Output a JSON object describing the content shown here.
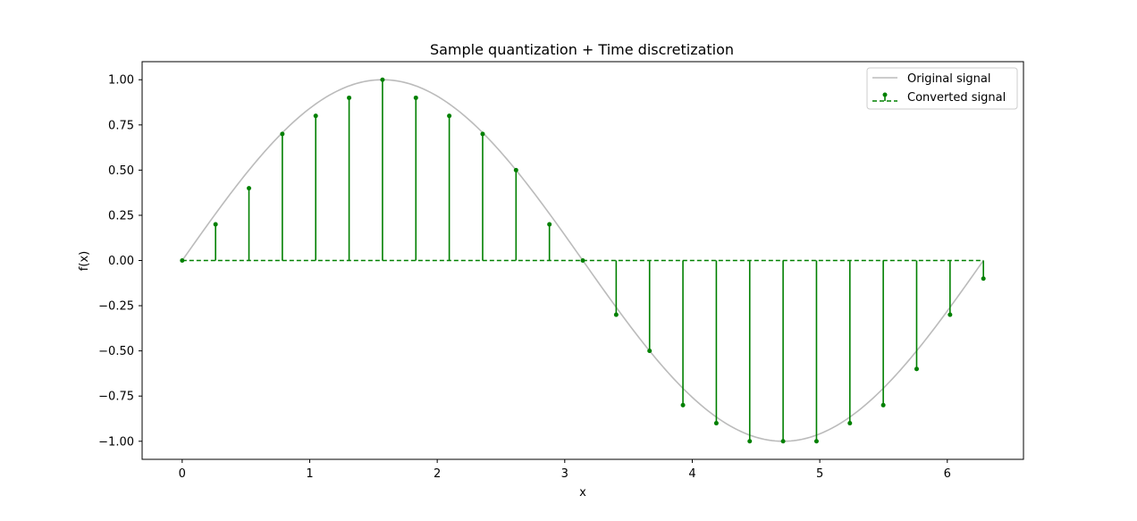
{
  "chart_data": {
    "type": "line",
    "title": "Sample quantization + Time discretization",
    "xlabel": "x",
    "ylabel": "f(x)",
    "xlim": [
      -0.3142,
      6.5974
    ],
    "ylim": [
      -1.1,
      1.1
    ],
    "xticks": [
      0,
      1,
      2,
      3,
      4,
      5,
      6
    ],
    "yticks": [
      -1.0,
      -0.75,
      -0.5,
      -0.25,
      0.0,
      0.25,
      0.5,
      0.75,
      1.0
    ],
    "xtick_labels": [
      "0",
      "1",
      "2",
      "3",
      "4",
      "5",
      "6"
    ],
    "ytick_labels": [
      "−1.00",
      "−0.75",
      "−0.50",
      "−0.25",
      "0.00",
      "0.25",
      "0.50",
      "0.75",
      "1.00"
    ],
    "grid": false,
    "legend_position": "top-right",
    "series": [
      {
        "name": "Original signal",
        "kind": "line",
        "function": "sin(x)",
        "x_range": [
          0,
          6.2832
        ],
        "color": "#bbbbbb"
      },
      {
        "name": "Converted signal",
        "kind": "stem",
        "color": "#008000",
        "baseline": 0,
        "x": [
          0,
          0.2618,
          0.5236,
          0.7854,
          1.0472,
          1.309,
          1.5708,
          1.8326,
          2.0944,
          2.3562,
          2.618,
          2.8798,
          3.1416,
          3.4034,
          3.6652,
          3.927,
          4.1888,
          4.4506,
          4.7124,
          4.9742,
          5.236,
          5.4978,
          5.7596,
          6.0214,
          6.2832
        ],
        "y": [
          0.0,
          0.2,
          0.4,
          0.7,
          0.8,
          0.9,
          1.0,
          0.9,
          0.8,
          0.7,
          0.5,
          0.2,
          0.0,
          -0.3,
          -0.5,
          -0.8,
          -0.9,
          -1.0,
          -1.0,
          -1.0,
          -0.9,
          -0.8,
          -0.6,
          -0.3,
          -0.1
        ]
      }
    ]
  }
}
